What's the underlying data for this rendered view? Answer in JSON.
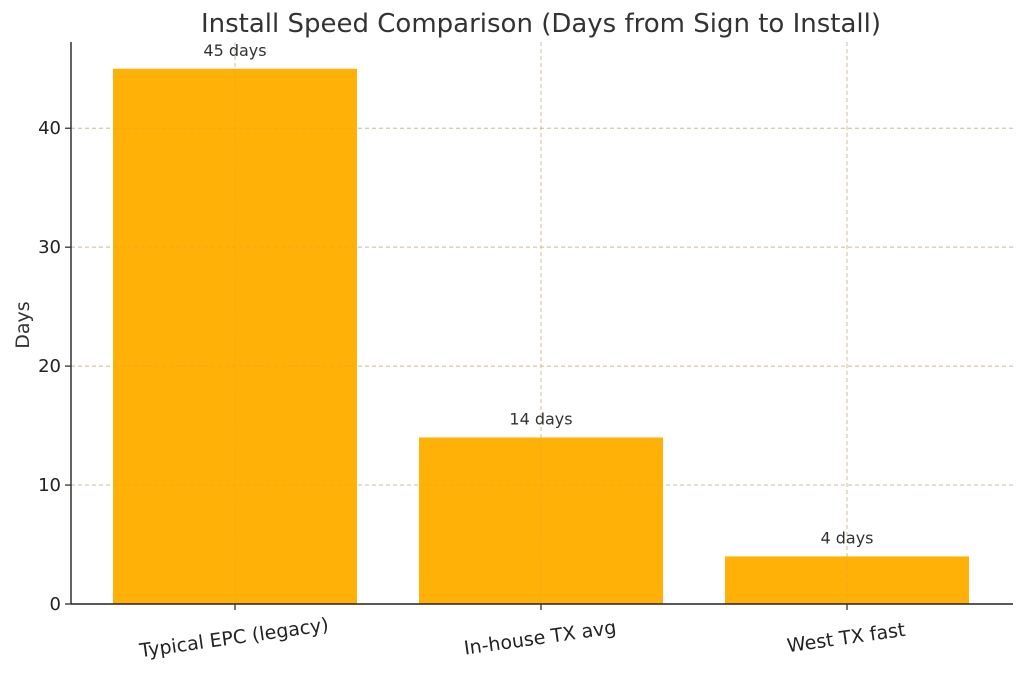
{
  "chart_data": {
    "type": "bar",
    "title": "Install Speed Comparison (Days from Sign to Install)",
    "xlabel": "",
    "ylabel": "Days",
    "categories": [
      "Typical EPC (legacy)",
      "In-house TX avg",
      "West TX fast"
    ],
    "values": [
      45,
      14,
      4
    ],
    "data_labels": [
      "45 days",
      "14 days",
      "4 days"
    ],
    "ylim": [
      0,
      47.25
    ],
    "yticks": [
      0,
      10,
      20,
      30,
      40
    ],
    "grid": true,
    "legend": "none",
    "bar_color": "#FFAE00",
    "grid_color": "#cccccc",
    "text_color": "#333333"
  }
}
